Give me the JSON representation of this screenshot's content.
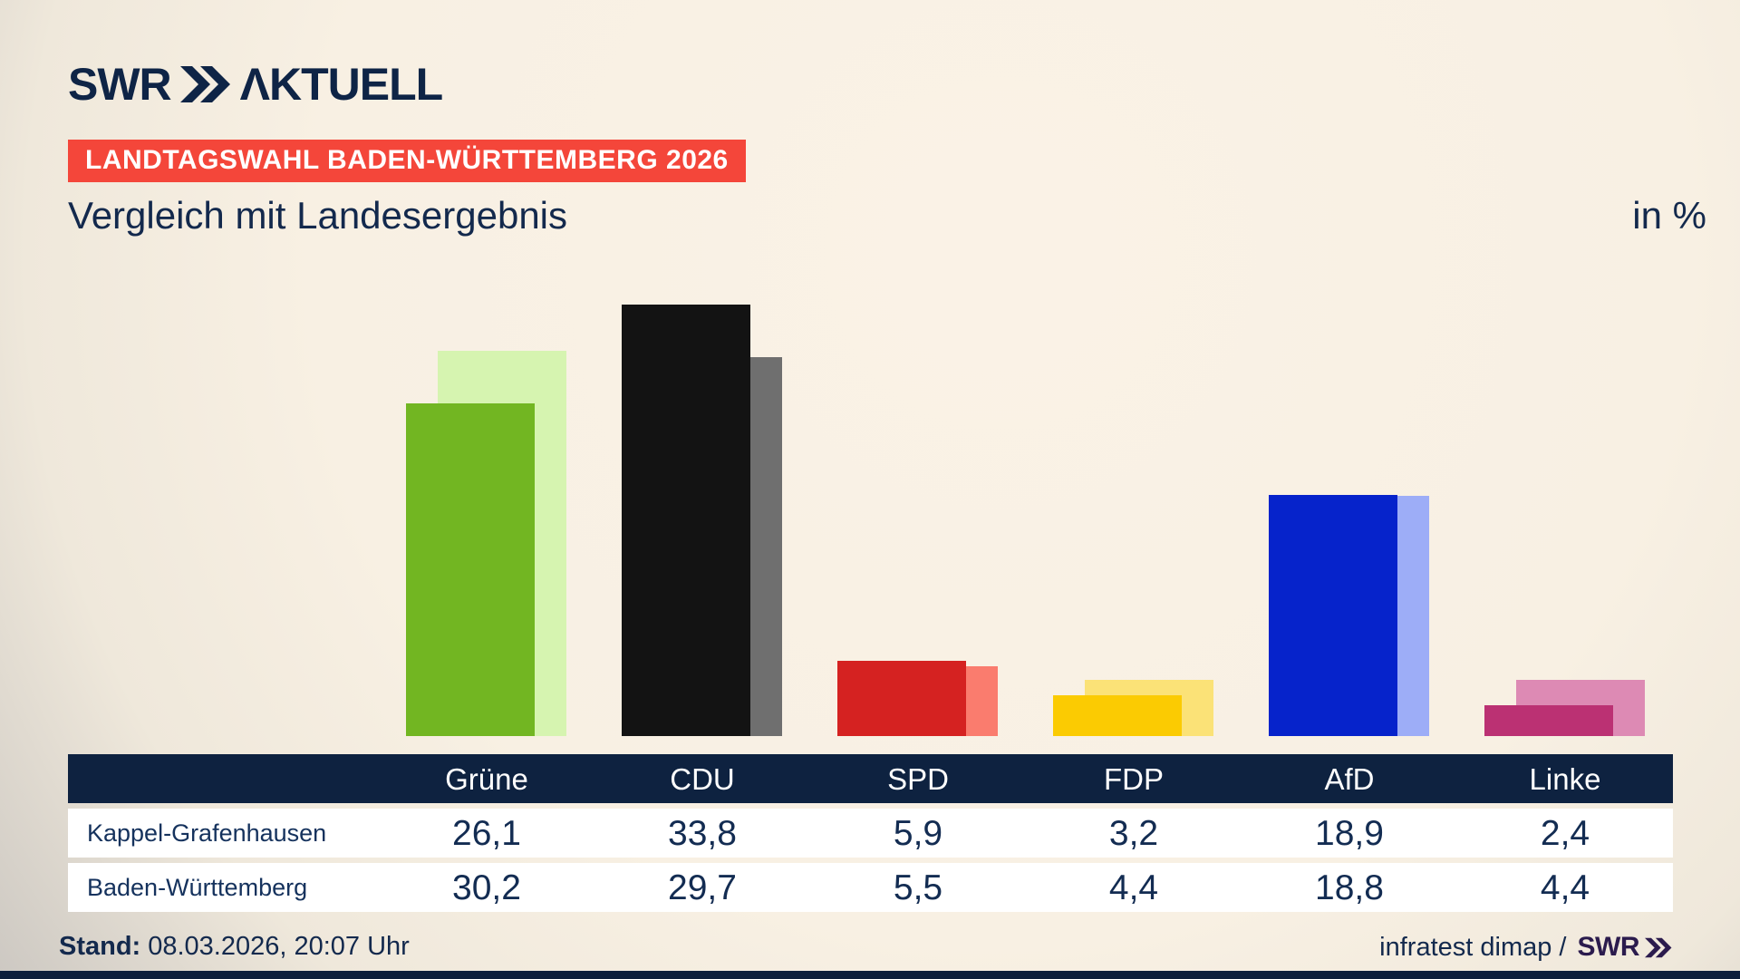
{
  "header": {
    "brand": "SWR",
    "brand_suffix": "ΛKTUELL",
    "badge": "LANDTAGSWAHL BADEN-WÜRTTEMBERG 2026",
    "title": "Vergleich mit Landesergebnis",
    "unit_label": "in %"
  },
  "chart_data": {
    "type": "bar",
    "categories": [
      "Grüne",
      "CDU",
      "SPD",
      "FDP",
      "AfD",
      "Linke"
    ],
    "series": [
      {
        "name": "Kappel-Grafenhausen",
        "role": "foreground",
        "values": [
          26.1,
          33.8,
          5.9,
          3.2,
          18.9,
          2.4
        ]
      },
      {
        "name": "Baden-Württemberg",
        "role": "background",
        "values": [
          30.2,
          29.7,
          5.5,
          4.4,
          18.8,
          4.4
        ]
      }
    ],
    "title": "Vergleich mit Landesergebnis",
    "xlabel": "",
    "ylabel": "in %",
    "ylim": [
      0,
      38.5
    ],
    "grid": false,
    "legend_position": "table below chart",
    "value_format": "decimal comma, one digit",
    "colors": {
      "Grüne": {
        "foreground": "#72b622",
        "background": "#d6f4b0"
      },
      "CDU": {
        "foreground": "#131313",
        "background": "#6f6f6f"
      },
      "SPD": {
        "foreground": "#d52221",
        "background": "#fa7c6e"
      },
      "FDP": {
        "foreground": "#fbcb02",
        "background": "#fbe277"
      },
      "AfD": {
        "foreground": "#0623cb",
        "background": "#9dadf7"
      },
      "Linke": {
        "foreground": "#bb3173",
        "background": "#dd8ab4"
      }
    }
  },
  "footer": {
    "stand_label": "Stand:",
    "stand_value": "08.03.2026, 20:07 Uhr",
    "credit": "infratest dimap /",
    "credit_brand": "SWR"
  },
  "colors": {
    "background_center": "#faf2e6",
    "background_edge": "#c7c3be",
    "badge_red": "#f4463a",
    "navy_text": "#13294d",
    "table_header_bg": "#0e2240",
    "logo_navy": "#0e2446",
    "footer_brand_indigo": "#2b1b4d",
    "bottom_bar": "#0d1f3c"
  }
}
